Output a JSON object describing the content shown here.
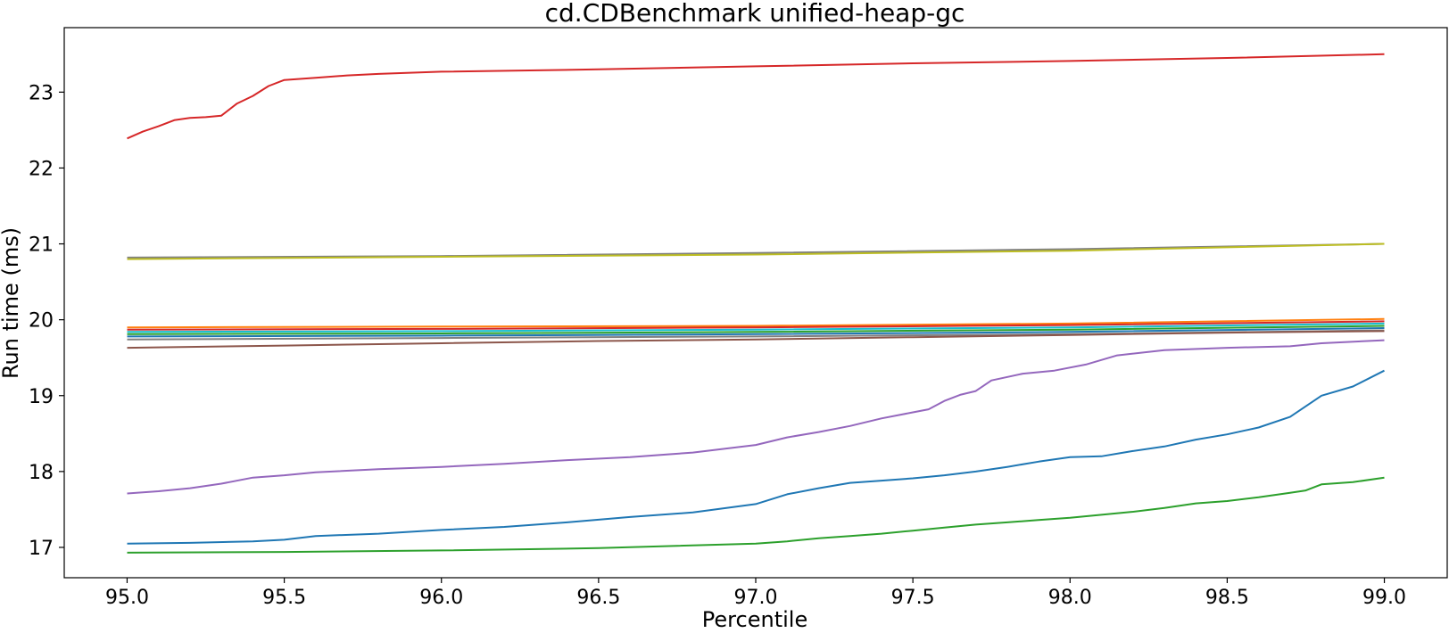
{
  "chart_data": {
    "type": "line",
    "title": "cd.CDBenchmark unified-heap-gc",
    "xlabel": "Percentile",
    "ylabel": "Run time (ms)",
    "xlim": [
      94.8,
      99.2
    ],
    "ylim": [
      16.6,
      23.85
    ],
    "xticks": [
      "95.0",
      "95.5",
      "96.0",
      "96.5",
      "97.0",
      "97.5",
      "98.0",
      "98.5",
      "99.0"
    ],
    "yticks": [
      "17",
      "18",
      "19",
      "20",
      "21",
      "22",
      "23"
    ],
    "grid": false,
    "legend": "none",
    "series": [
      {
        "color": "#d62728",
        "x": [
          95.0,
          95.05,
          95.1,
          95.15,
          95.2,
          95.25,
          95.3,
          95.35,
          95.4,
          95.45,
          95.5,
          95.6,
          95.7,
          95.8,
          96.0,
          96.5,
          97.0,
          97.5,
          98.0,
          98.5,
          99.0
        ],
        "y": [
          22.39,
          22.48,
          22.55,
          22.63,
          22.66,
          22.67,
          22.69,
          22.85,
          22.95,
          23.08,
          23.16,
          23.19,
          23.22,
          23.24,
          23.27,
          23.3,
          23.34,
          23.38,
          23.41,
          23.45,
          23.5
        ]
      },
      {
        "color": "#7f7f7f",
        "x": [
          95.0,
          96.0,
          97.0,
          98.0,
          99.0
        ],
        "y": [
          20.82,
          20.84,
          20.88,
          20.93,
          21.0
        ]
      },
      {
        "color": "#bcbd22",
        "x": [
          95.0,
          96.0,
          97.0,
          98.0,
          99.0
        ],
        "y": [
          20.8,
          20.83,
          20.86,
          20.91,
          21.0
        ]
      },
      {
        "color": "#ff7f0e",
        "x": [
          95.0,
          96.0,
          97.0,
          98.0,
          99.0
        ],
        "y": [
          19.9,
          19.91,
          19.92,
          19.95,
          20.01
        ]
      },
      {
        "color": "#d62728",
        "x": [
          95.0,
          96.0,
          97.0,
          98.0,
          99.0
        ],
        "y": [
          19.87,
          19.88,
          19.9,
          19.93,
          19.98
        ]
      },
      {
        "color": "#17becf",
        "x": [
          95.0,
          96.0,
          97.0,
          98.0,
          99.0
        ],
        "y": [
          19.84,
          19.85,
          19.87,
          19.9,
          19.95
        ]
      },
      {
        "color": "#2ca02c",
        "x": [
          95.0,
          96.0,
          97.0,
          98.0,
          99.0
        ],
        "y": [
          19.81,
          19.82,
          19.84,
          19.87,
          19.92
        ]
      },
      {
        "color": "#1f77b4",
        "x": [
          95.0,
          96.0,
          97.0,
          98.0,
          99.0
        ],
        "y": [
          19.78,
          19.79,
          19.81,
          19.84,
          19.89
        ]
      },
      {
        "color": "#7f7f7f",
        "x": [
          95.0,
          96.0,
          97.0,
          98.0,
          99.0
        ],
        "y": [
          19.74,
          19.76,
          19.78,
          19.81,
          19.86
        ]
      },
      {
        "color": "#8c564b",
        "x": [
          95.0,
          95.5,
          96.0,
          96.5,
          97.0,
          97.5,
          98.0,
          98.5,
          99.0
        ],
        "y": [
          19.63,
          19.66,
          19.69,
          19.72,
          19.74,
          19.77,
          19.8,
          19.83,
          19.85
        ]
      },
      {
        "color": "#9467bd",
        "x": [
          95.0,
          95.1,
          95.2,
          95.3,
          95.4,
          95.5,
          95.6,
          95.8,
          96.0,
          96.2,
          96.4,
          96.6,
          96.8,
          97.0,
          97.1,
          97.2,
          97.3,
          97.4,
          97.5,
          97.55,
          97.6,
          97.65,
          97.7,
          97.75,
          97.85,
          97.95,
          98.05,
          98.15,
          98.3,
          98.5,
          98.7,
          98.8,
          99.0
        ],
        "y": [
          17.71,
          17.74,
          17.78,
          17.84,
          17.92,
          17.95,
          17.99,
          18.03,
          18.06,
          18.1,
          18.15,
          18.19,
          18.25,
          18.35,
          18.45,
          18.52,
          18.6,
          18.7,
          18.78,
          18.82,
          18.93,
          19.01,
          19.06,
          19.2,
          19.29,
          19.33,
          19.41,
          19.53,
          19.6,
          19.63,
          19.65,
          19.69,
          19.73
        ]
      },
      {
        "color": "#1f77b4",
        "x": [
          95.0,
          95.2,
          95.4,
          95.5,
          95.6,
          95.8,
          96.0,
          96.2,
          96.4,
          96.6,
          96.8,
          97.0,
          97.1,
          97.2,
          97.3,
          97.4,
          97.5,
          97.6,
          97.7,
          97.8,
          97.9,
          98.0,
          98.1,
          98.2,
          98.3,
          98.4,
          98.5,
          98.6,
          98.7,
          98.8,
          98.9,
          99.0
        ],
        "y": [
          17.05,
          17.06,
          17.08,
          17.1,
          17.15,
          17.18,
          17.23,
          17.27,
          17.33,
          17.4,
          17.46,
          17.57,
          17.7,
          17.78,
          17.85,
          17.88,
          17.91,
          17.95,
          18.0,
          18.06,
          18.13,
          18.19,
          18.2,
          18.27,
          18.33,
          18.42,
          18.49,
          18.58,
          18.72,
          19.0,
          19.12,
          19.33
        ]
      },
      {
        "color": "#2ca02c",
        "x": [
          95.0,
          95.5,
          96.0,
          96.5,
          97.0,
          97.1,
          97.2,
          97.3,
          97.4,
          97.5,
          97.6,
          97.7,
          97.8,
          97.9,
          98.0,
          98.1,
          98.2,
          98.3,
          98.4,
          98.5,
          98.6,
          98.7,
          98.75,
          98.8,
          98.9,
          99.0
        ],
        "y": [
          16.93,
          16.94,
          16.96,
          16.99,
          17.05,
          17.08,
          17.12,
          17.15,
          17.18,
          17.22,
          17.26,
          17.3,
          17.33,
          17.36,
          17.39,
          17.43,
          17.47,
          17.52,
          17.58,
          17.61,
          17.66,
          17.72,
          17.75,
          17.83,
          17.86,
          17.92
        ]
      }
    ]
  }
}
